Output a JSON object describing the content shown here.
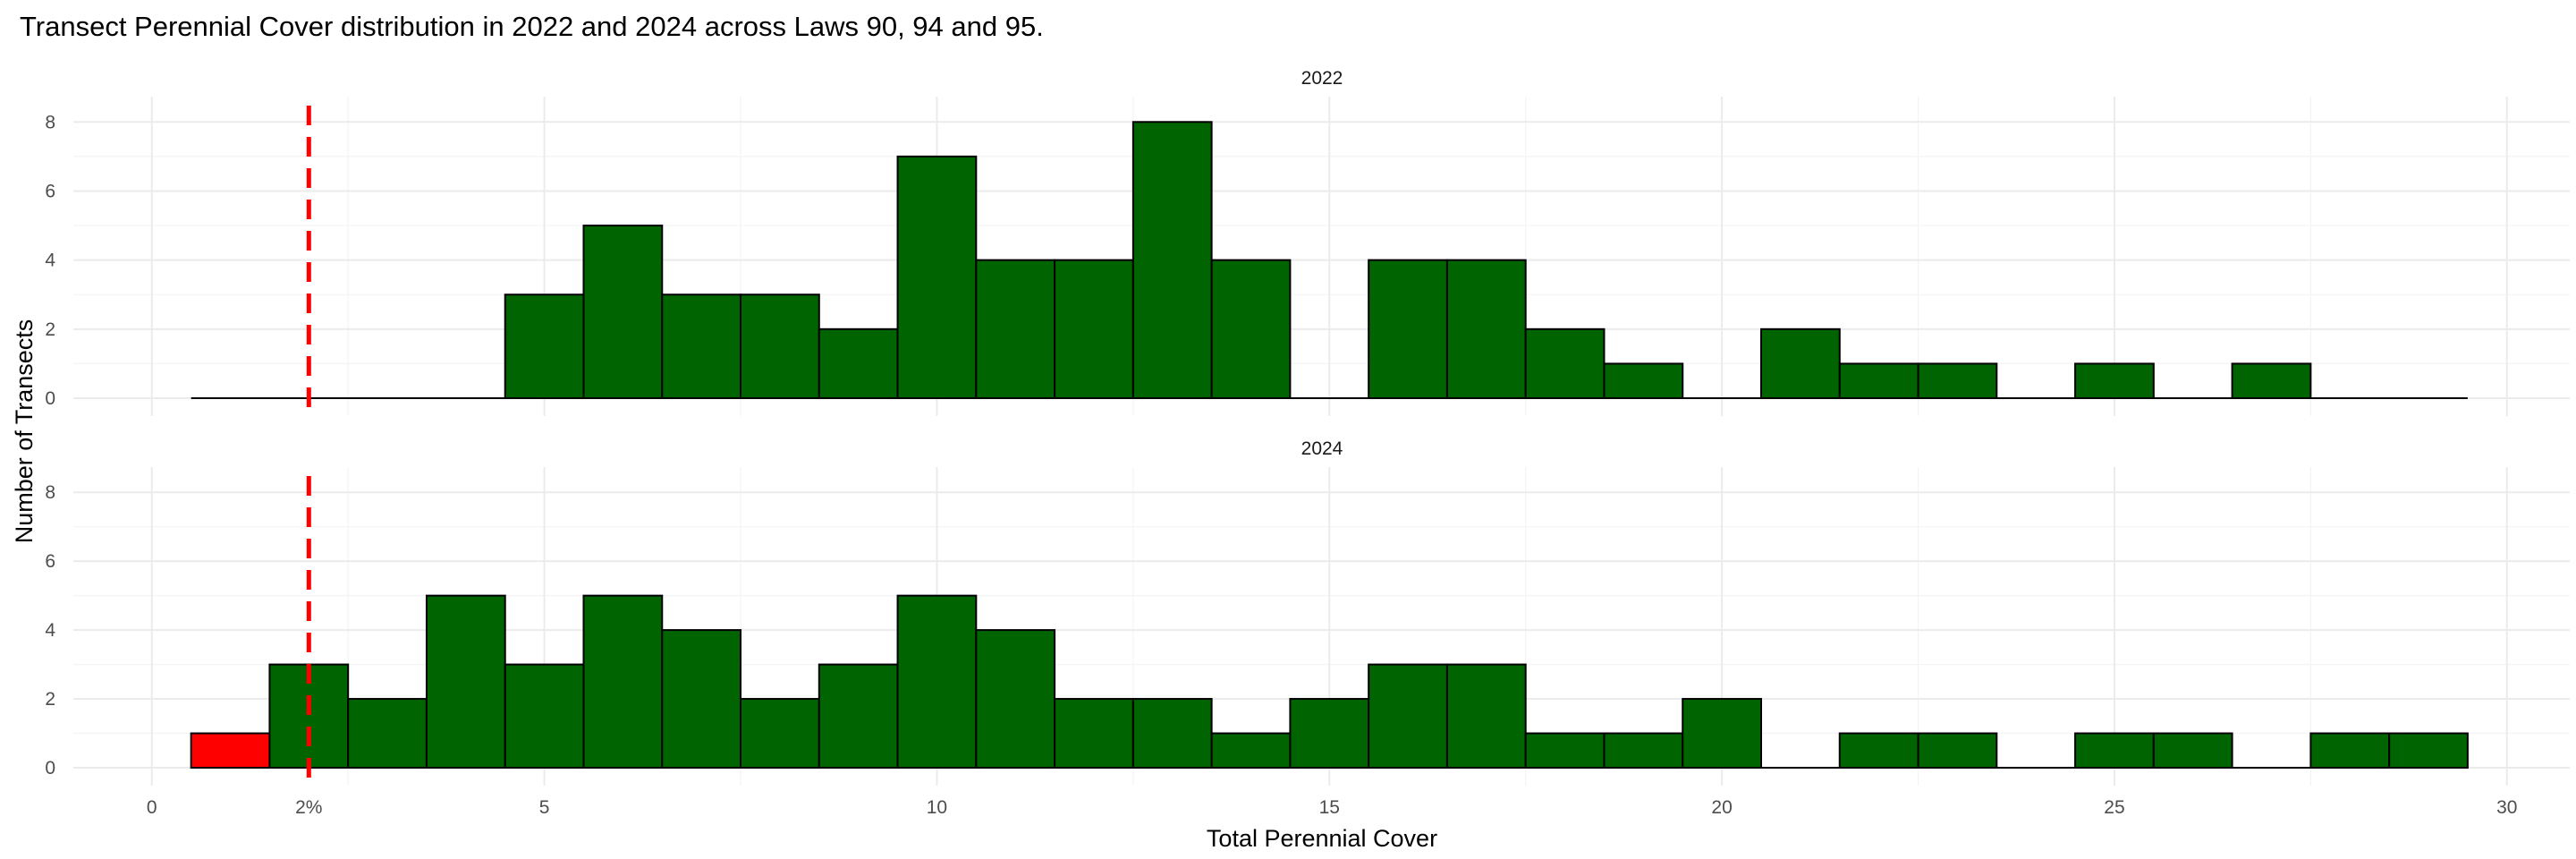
{
  "chart_data": {
    "type": "bar",
    "title": "Transect Perennial Cover distribution in 2022 and 2024 across Laws 90, 94 and 95.",
    "xlabel": "Total Perennial Cover",
    "ylabel": "Number of Transects",
    "xlim": [
      -1,
      30.8
    ],
    "ylim": [
      0,
      8.5
    ],
    "x_ticks": [
      {
        "value": 0,
        "label": "0"
      },
      {
        "value": 2,
        "label": "2%"
      },
      {
        "value": 5,
        "label": "5"
      },
      {
        "value": 10,
        "label": "10"
      },
      {
        "value": 15,
        "label": "15"
      },
      {
        "value": 20,
        "label": "20"
      },
      {
        "value": 25,
        "label": "25"
      },
      {
        "value": 30,
        "label": "30"
      }
    ],
    "y_ticks": [
      0,
      2,
      4,
      6,
      8
    ],
    "bin_width": 1,
    "bin_centers": [
      1,
      2,
      3,
      4,
      5,
      6,
      7,
      8,
      9,
      10,
      11,
      12,
      13,
      14,
      15,
      16,
      17,
      18,
      19,
      20,
      21,
      22,
      23,
      24,
      25,
      26,
      27,
      28,
      29
    ],
    "threshold": {
      "value": 2,
      "color": "#ff0000",
      "style": "dashed"
    },
    "grid": true,
    "colors": {
      "fill": "#006400",
      "below_threshold": "#ff0000",
      "outline": "#000000"
    },
    "panels": [
      {
        "label": "2022",
        "values": [
          0,
          0,
          0,
          0,
          3,
          5,
          3,
          3,
          2,
          7,
          4,
          4,
          8,
          4,
          0,
          4,
          4,
          2,
          1,
          0,
          2,
          1,
          1,
          0,
          1,
          0,
          1,
          0,
          0
        ]
      },
      {
        "label": "2024",
        "values": [
          1,
          3,
          2,
          5,
          3,
          5,
          4,
          2,
          3,
          5,
          4,
          2,
          2,
          1,
          2,
          3,
          3,
          1,
          1,
          2,
          0,
          1,
          1,
          0,
          1,
          1,
          0,
          1,
          1
        ]
      }
    ]
  }
}
